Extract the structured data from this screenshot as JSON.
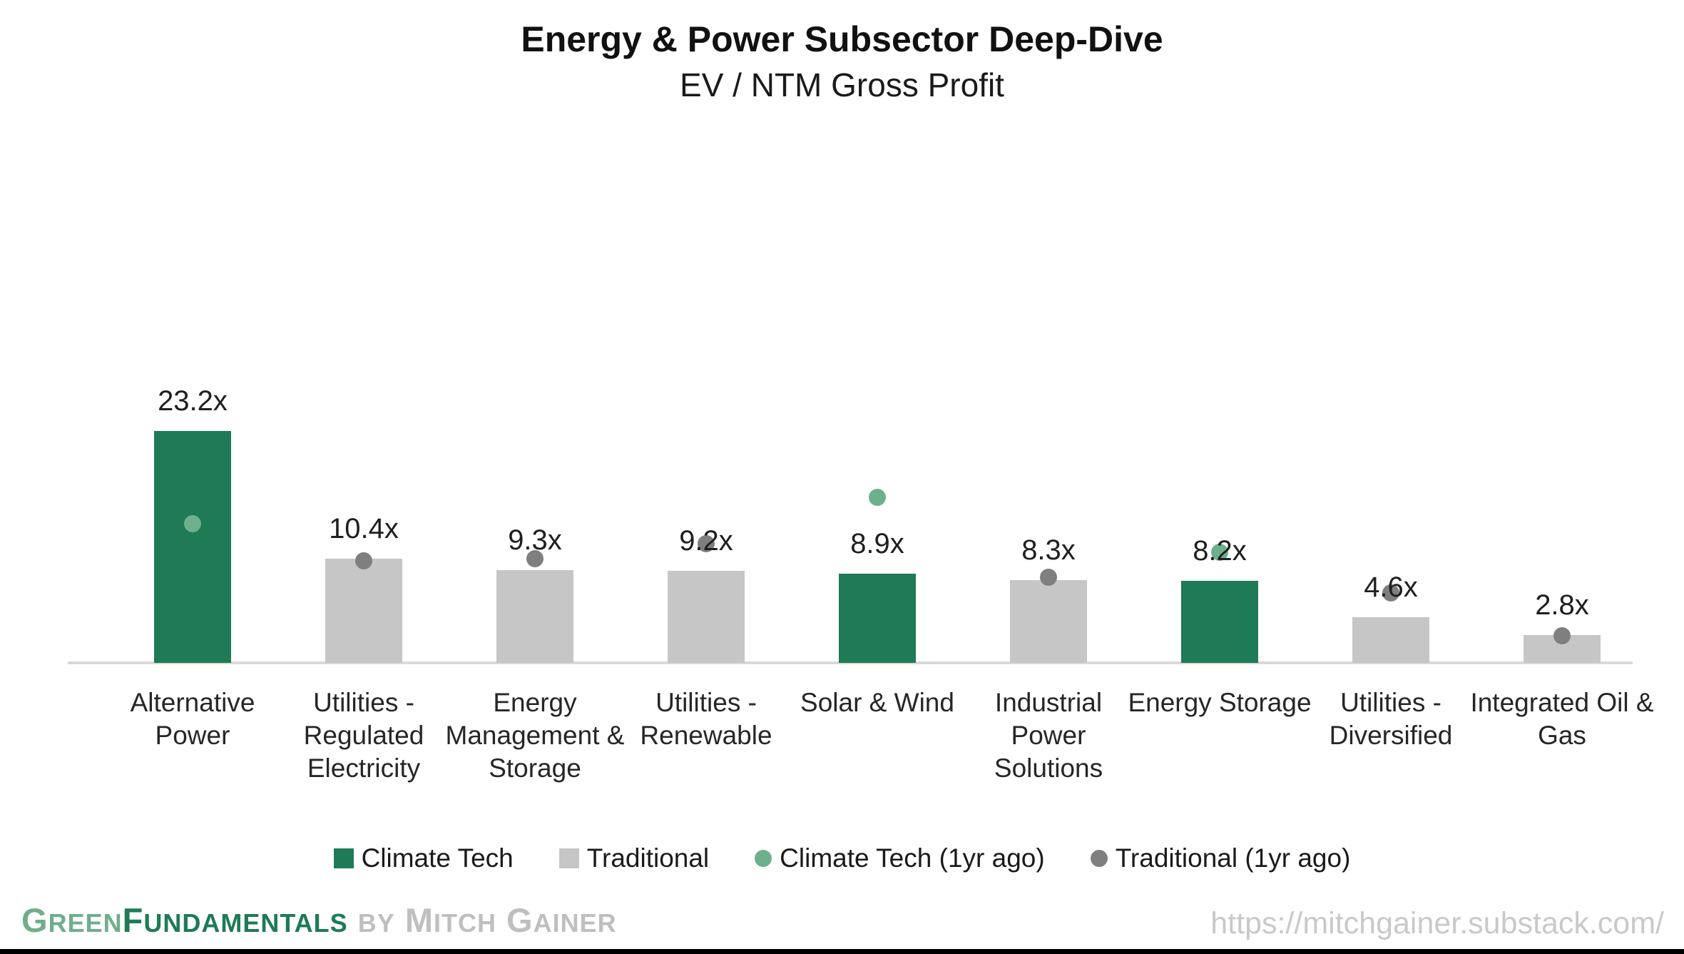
{
  "header": {
    "title": "Energy & Power Subsector Deep-Dive",
    "subtitle": "EV / NTM Gross Profit"
  },
  "chart_data": {
    "type": "bar",
    "title": "Energy & Power Subsector Deep-Dive",
    "subtitle": "EV / NTM Gross Profit",
    "ylabel": "EV / NTM Gross Profit (x)",
    "xlabel": "",
    "ylim": [
      0,
      25
    ],
    "grid": false,
    "legend_position": "bottom",
    "unit_suffix": "x",
    "categories": [
      "Alternative Power",
      "Utilities - Regulated Electricity",
      "Energy Management & Storage",
      "Utilities - Renewable",
      "Solar & Wind",
      "Industrial Power Solutions",
      "Energy Storage",
      "Utilities - Diversified",
      "Integrated Oil & Gas"
    ],
    "bars": [
      {
        "category": "Alternative Power",
        "group": "Climate Tech",
        "value": 23.2,
        "label": "23.2x",
        "prev_group": "Climate Tech (1yr ago)",
        "prev_value": 13.9
      },
      {
        "category": "Utilities - Regulated Electricity",
        "group": "Traditional",
        "value": 10.4,
        "label": "10.4x",
        "prev_group": "Traditional (1yr ago)",
        "prev_value": 10.2
      },
      {
        "category": "Energy Management & Storage",
        "group": "Traditional",
        "value": 9.3,
        "label": "9.3x",
        "prev_group": "Traditional (1yr ago)",
        "prev_value": 10.4
      },
      {
        "category": "Utilities - Renewable",
        "group": "Traditional",
        "value": 9.2,
        "label": "9.2x",
        "prev_group": "Traditional (1yr ago)",
        "prev_value": 11.9
      },
      {
        "category": "Solar & Wind",
        "group": "Climate Tech",
        "value": 8.9,
        "label": "8.9x",
        "prev_group": "Climate Tech (1yr ago)",
        "prev_value": 16.6
      },
      {
        "category": "Industrial Power Solutions",
        "group": "Traditional",
        "value": 8.3,
        "label": "8.3x",
        "prev_group": "Traditional (1yr ago)",
        "prev_value": 8.6
      },
      {
        "category": "Energy Storage",
        "group": "Climate Tech",
        "value": 8.2,
        "label": "8.2x",
        "prev_group": "Climate Tech (1yr ago)",
        "prev_value": 11.1
      },
      {
        "category": "Utilities - Diversified",
        "group": "Traditional",
        "value": 4.6,
        "label": "4.6x",
        "prev_group": "Traditional (1yr ago)",
        "prev_value": 7.0
      },
      {
        "category": "Integrated Oil & Gas",
        "group": "Traditional",
        "value": 2.8,
        "label": "2.8x",
        "prev_group": "Traditional (1yr ago)",
        "prev_value": 2.7
      }
    ],
    "legend": [
      {
        "label": "Climate Tech",
        "marker": "square"
      },
      {
        "label": "Traditional",
        "marker": "square"
      },
      {
        "label": "Climate Tech (1yr ago)",
        "marker": "circle"
      },
      {
        "label": "Traditional (1yr ago)",
        "marker": "circle"
      }
    ],
    "colors": {
      "Climate Tech": "#1E7B55",
      "Traditional": "#C6C6C6",
      "Climate Tech (1yr ago)": "#6FB08C",
      "Traditional (1yr ago)": "#7F7F7F",
      "axis": "#D9D9D9"
    }
  },
  "footer": {
    "brand_parts": [
      {
        "text": "Green",
        "color": "#6FAE8C"
      },
      {
        "text": "Fundamentals",
        "color": "#1E7B55"
      },
      {
        "text": " by Mitch Gainer",
        "color": "#BFBFBF"
      }
    ],
    "url": "https://mitchgainer.substack.com/"
  }
}
